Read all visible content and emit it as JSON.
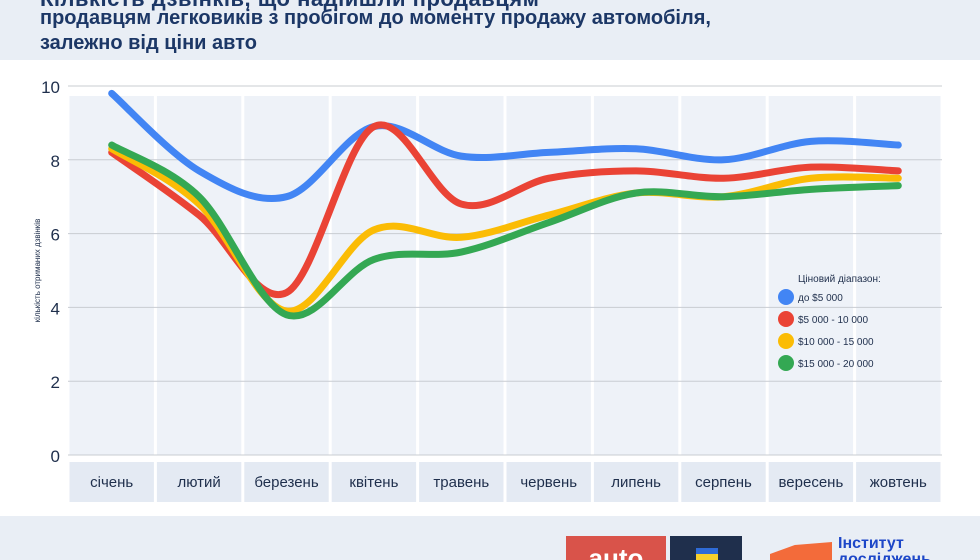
{
  "header": {
    "title_cut": "Кількість дзвінків, що надійшли продавцям",
    "subtitle": "продавцям легковиків з пробігом до моменту продажу автомобіля,\nзалежно від ціни авто"
  },
  "footer": {
    "auto_logo": "auto",
    "institute_logo": "Інститут\nдосліджень"
  },
  "chart_data": {
    "type": "line",
    "title": "продавцям легковиків з пробігом до моменту продажу автомобіля, залежно від ціни авто",
    "ylabel": "кількість отриманих дзвінків",
    "xlabel": "",
    "ylim": [
      0,
      10
    ],
    "yticks": [
      0,
      2,
      4,
      6,
      8,
      10
    ],
    "grid": true,
    "legend_title": "Ціновий діапазон:",
    "legend_position": "right",
    "categories": [
      "січень",
      "лютий",
      "березень",
      "квітень",
      "травень",
      "червень",
      "липень",
      "серпень",
      "вересень",
      "жовтень"
    ],
    "series": [
      {
        "name": "до $5 000",
        "color": "#4285f4",
        "values": [
          9.8,
          7.7,
          7.0,
          8.9,
          8.1,
          8.2,
          8.3,
          8.0,
          8.5,
          8.4
        ]
      },
      {
        "name": "$5 000 - 10 000",
        "color": "#ea4335",
        "values": [
          8.2,
          6.5,
          4.4,
          8.9,
          6.8,
          7.5,
          7.7,
          7.5,
          7.8,
          7.7
        ]
      },
      {
        "name": "$10 000 - 15 000",
        "color": "#fbbc05",
        "values": [
          8.3,
          6.8,
          3.9,
          6.1,
          5.9,
          6.5,
          7.1,
          7.0,
          7.5,
          7.5
        ]
      },
      {
        "name": "$15 000 - 20 000",
        "color": "#34a853",
        "values": [
          8.4,
          7.0,
          3.8,
          5.3,
          5.5,
          6.3,
          7.1,
          7.0,
          7.2,
          7.3
        ]
      }
    ]
  }
}
